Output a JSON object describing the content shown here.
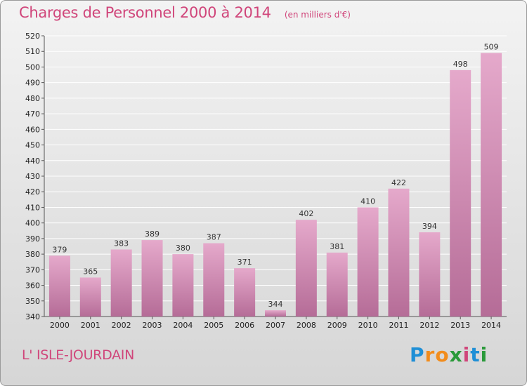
{
  "title": "Charges de Personnel 2000 à 2014",
  "subtitle": "(en milliers d'€)",
  "place": "L' ISLE-JOURDAIN",
  "logo": {
    "letters": [
      "P",
      "r",
      "o",
      "x",
      "i",
      "t",
      "i"
    ],
    "colors": [
      "#1f8fd6",
      "#f28c1c",
      "#f28c1c",
      "#2a9a3a",
      "#d0457a",
      "#1f8fd6",
      "#2a9a3a"
    ]
  },
  "colors": {
    "title": "#d0457a",
    "bar_light": "#e5a9cb",
    "bar_dark": "#b56c97",
    "grid": "#ffffff"
  },
  "chart_data": {
    "type": "bar",
    "title": "Charges de Personnel 2000 à 2014",
    "subtitle": "(en milliers d'€)",
    "categories": [
      "2000",
      "2001",
      "2002",
      "2003",
      "2004",
      "2005",
      "2006",
      "2007",
      "2008",
      "2009",
      "2010",
      "2011",
      "2012",
      "2013",
      "2014"
    ],
    "values": [
      379,
      365,
      383,
      389,
      380,
      387,
      371,
      344,
      402,
      381,
      410,
      422,
      394,
      498,
      509
    ],
    "ylim": [
      340,
      520
    ],
    "ytick_step": 10,
    "grid": true
  }
}
